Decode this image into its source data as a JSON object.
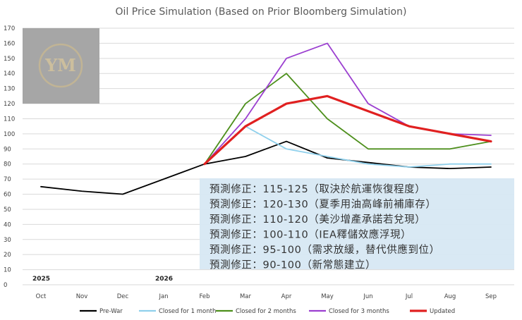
{
  "chart_data": {
    "type": "line",
    "title": "Oil Price Simulation (Based on Prior Bloomberg Simulation)",
    "categories": [
      "Oct",
      "Nov",
      "Dec",
      "Jan",
      "Feb",
      "Mar",
      "Apr",
      "May",
      "Jun",
      "Jul",
      "Aug",
      "Sep"
    ],
    "year_labels": [
      {
        "label": "2025",
        "category_index": 0
      },
      {
        "label": "2026",
        "category_index": 3
      }
    ],
    "ylim": [
      0,
      170
    ],
    "yticks": [
      0,
      10,
      20,
      30,
      40,
      50,
      60,
      70,
      80,
      90,
      100,
      110,
      120,
      130,
      140,
      150,
      160,
      170
    ],
    "grid": true,
    "legend_position": "bottom",
    "series": [
      {
        "name": "Pre-War",
        "color": "#000000",
        "values": [
          65,
          62,
          60,
          70,
          80,
          85,
          95,
          84,
          81,
          78,
          77,
          78
        ]
      },
      {
        "name": "Closed for 1 month",
        "color": "#8fd0ec",
        "values": [
          null,
          null,
          null,
          null,
          80,
          105,
          90,
          85,
          80,
          78,
          80,
          80
        ]
      },
      {
        "name": "Closed for 2 months",
        "color": "#4d8f1c",
        "values": [
          null,
          null,
          null,
          null,
          80,
          120,
          140,
          110,
          90,
          90,
          90,
          95
        ]
      },
      {
        "name": "Closed for 3 months",
        "color": "#9b3fd0",
        "values": [
          null,
          null,
          null,
          null,
          80,
          110,
          150,
          160,
          120,
          105,
          100,
          99
        ]
      },
      {
        "name": "Updated",
        "color": "#e02020",
        "values": [
          null,
          null,
          null,
          null,
          80,
          105,
          120,
          125,
          115,
          105,
          100,
          95
        ]
      }
    ],
    "annotations": [
      "預測修正：115-125（取決於航運恢復程度）",
      "預測修正：120-130（夏季用油高峰前補庫存）",
      "預測修正：110-120（美沙增產承諾若兌現）",
      "預測修正：100-110（IEA釋儲效應浮現）",
      "預測修正：95-100（需求放緩，替代供應到位）",
      "預測修正：90-100（新常態建立）"
    ]
  },
  "watermark": {
    "text": "YM"
  }
}
